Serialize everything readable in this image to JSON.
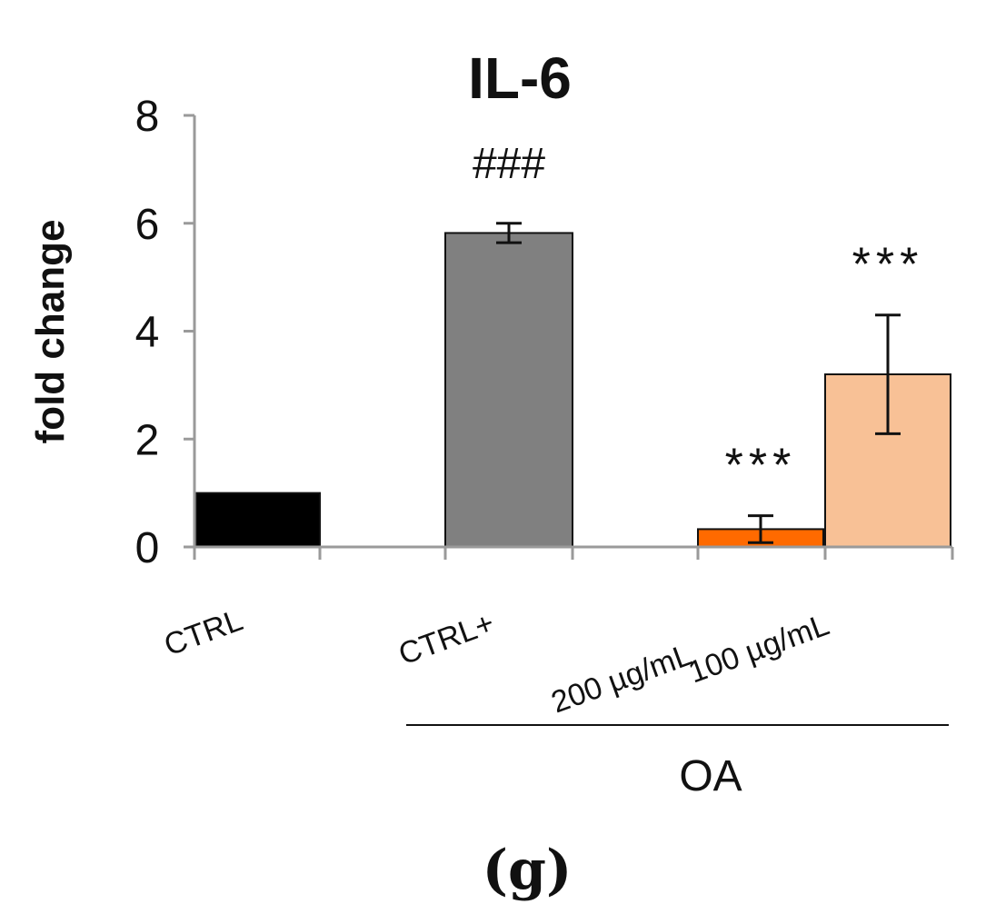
{
  "panel_label": "(g)",
  "chart_data": {
    "type": "bar",
    "title": "IL-6",
    "ylabel": "fold change",
    "xlabel": "",
    "ylim": [
      0,
      8
    ],
    "yticks": [
      0,
      2,
      4,
      6,
      8
    ],
    "categories": [
      "CTRL",
      "CTRL+",
      "200 µg/mL",
      "100 µg/mL"
    ],
    "values": [
      1.0,
      5.82,
      0.33,
      3.2
    ],
    "errors": [
      null,
      0.18,
      0.25,
      1.1
    ],
    "colors": [
      "#000000",
      "#808080",
      "#ff6a00",
      "#f8c196"
    ],
    "significance": [
      "",
      "###",
      "***",
      "***"
    ],
    "group_label": "OA",
    "group_members": [
      "CTRL+",
      "200 µg/mL",
      "100 µg/mL"
    ],
    "grid": false,
    "legend": "none"
  }
}
